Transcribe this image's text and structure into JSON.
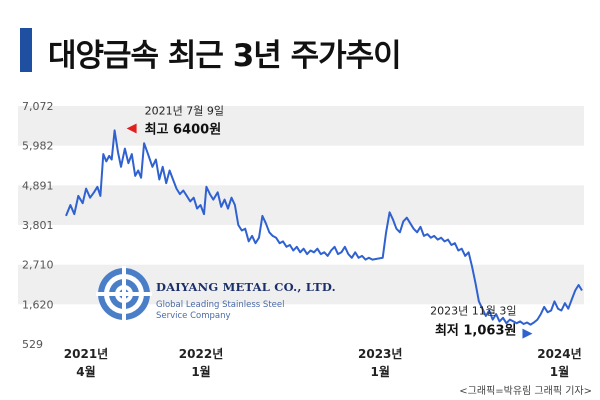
{
  "header": {
    "title": "대양금속 최근 3년 주가추이"
  },
  "credit": "<그래픽=박유림 그래픽 기자>",
  "logo": {
    "name": "DAIYANG METAL CO., LTD.",
    "tagline_1": "Global Leading Stainless Steel",
    "tagline_2": "Service Company"
  },
  "colors": {
    "line": "#2f62d0",
    "title_bar": "#1f4fa0",
    "band": "#efefef",
    "high_marker": "#e02020",
    "low_marker": "#2f62d0"
  },
  "chart_data": {
    "type": "line",
    "title": "대양금속 최근 3년 주가추이",
    "y_ticks": [
      "7,072",
      "5,982",
      "4,891",
      "3,801",
      "2,710",
      "1,620",
      "529"
    ],
    "ylim": [
      529,
      7072
    ],
    "x_ticks": [
      {
        "year": "2021년",
        "month": "4월",
        "date": "2021-04"
      },
      {
        "year": "2022년",
        "month": "1월",
        "date": "2022-01"
      },
      {
        "year": "2023년",
        "month": "1월",
        "date": "2023-01"
      },
      {
        "year": "2024년",
        "month": "1월",
        "date": "2024-01"
      }
    ],
    "series": [
      {
        "values": [
          [
            "2021-04-01",
            4050
          ],
          [
            "2021-04-10",
            4350
          ],
          [
            "2021-04-18",
            4100
          ],
          [
            "2021-04-26",
            4600
          ],
          [
            "2021-05-05",
            4400
          ],
          [
            "2021-05-12",
            4800
          ],
          [
            "2021-05-20",
            4550
          ],
          [
            "2021-05-28",
            4700
          ],
          [
            "2021-06-04",
            4850
          ],
          [
            "2021-06-10",
            4600
          ],
          [
            "2021-06-16",
            5750
          ],
          [
            "2021-06-22",
            5550
          ],
          [
            "2021-06-28",
            5700
          ],
          [
            "2021-07-03",
            5600
          ],
          [
            "2021-07-09",
            6400
          ],
          [
            "2021-07-16",
            5800
          ],
          [
            "2021-07-22",
            5400
          ],
          [
            "2021-07-30",
            5900
          ],
          [
            "2021-08-06",
            5500
          ],
          [
            "2021-08-13",
            5750
          ],
          [
            "2021-08-20",
            5150
          ],
          [
            "2021-08-26",
            5300
          ],
          [
            "2021-09-01",
            5100
          ],
          [
            "2021-09-07",
            6050
          ],
          [
            "2021-09-15",
            5750
          ],
          [
            "2021-09-24",
            5400
          ],
          [
            "2021-10-01",
            5600
          ],
          [
            "2021-10-08",
            5050
          ],
          [
            "2021-10-15",
            5400
          ],
          [
            "2021-10-22",
            4950
          ],
          [
            "2021-10-29",
            5300
          ],
          [
            "2021-11-05",
            5050
          ],
          [
            "2021-11-12",
            4800
          ],
          [
            "2021-11-19",
            4650
          ],
          [
            "2021-11-26",
            4750
          ],
          [
            "2021-12-03",
            4600
          ],
          [
            "2021-12-10",
            4450
          ],
          [
            "2021-12-17",
            4550
          ],
          [
            "2021-12-24",
            4250
          ],
          [
            "2021-12-31",
            4350
          ],
          [
            "2022-01-07",
            4100
          ],
          [
            "2022-01-12",
            4850
          ],
          [
            "2022-01-19",
            4650
          ],
          [
            "2022-01-26",
            4500
          ],
          [
            "2022-02-04",
            4700
          ],
          [
            "2022-02-11",
            4300
          ],
          [
            "2022-02-18",
            4500
          ],
          [
            "2022-02-25",
            4250
          ],
          [
            "2022-03-04",
            4550
          ],
          [
            "2022-03-11",
            4350
          ],
          [
            "2022-03-18",
            3800
          ],
          [
            "2022-03-25",
            3650
          ],
          [
            "2022-04-01",
            3700
          ],
          [
            "2022-04-08",
            3350
          ],
          [
            "2022-04-15",
            3500
          ],
          [
            "2022-04-22",
            3300
          ],
          [
            "2022-04-29",
            3450
          ],
          [
            "2022-05-06",
            4050
          ],
          [
            "2022-05-13",
            3850
          ],
          [
            "2022-05-20",
            3600
          ],
          [
            "2022-05-27",
            3500
          ],
          [
            "2022-06-03",
            3450
          ],
          [
            "2022-06-10",
            3300
          ],
          [
            "2022-06-17",
            3350
          ],
          [
            "2022-06-24",
            3200
          ],
          [
            "2022-07-01",
            3250
          ],
          [
            "2022-07-08",
            3100
          ],
          [
            "2022-07-15",
            3200
          ],
          [
            "2022-07-22",
            3050
          ],
          [
            "2022-07-29",
            3150
          ],
          [
            "2022-08-05",
            3000
          ],
          [
            "2022-08-12",
            3100
          ],
          [
            "2022-08-19",
            3050
          ],
          [
            "2022-08-26",
            3150
          ],
          [
            "2022-09-02",
            3000
          ],
          [
            "2022-09-09",
            3050
          ],
          [
            "2022-09-16",
            2950
          ],
          [
            "2022-09-23",
            3100
          ],
          [
            "2022-09-30",
            3200
          ],
          [
            "2022-10-07",
            3000
          ],
          [
            "2022-10-14",
            3050
          ],
          [
            "2022-10-21",
            3200
          ],
          [
            "2022-10-28",
            3000
          ],
          [
            "2022-11-04",
            2900
          ],
          [
            "2022-11-11",
            3050
          ],
          [
            "2022-11-18",
            2900
          ],
          [
            "2022-11-25",
            2950
          ],
          [
            "2022-12-02",
            2850
          ],
          [
            "2022-12-09",
            2900
          ],
          [
            "2022-12-16",
            2850
          ],
          [
            "2023-01-06",
            2900
          ],
          [
            "2023-01-13",
            3600
          ],
          [
            "2023-01-20",
            4150
          ],
          [
            "2023-01-27",
            3950
          ],
          [
            "2023-02-03",
            3700
          ],
          [
            "2023-02-10",
            3600
          ],
          [
            "2023-02-17",
            3900
          ],
          [
            "2023-02-24",
            4000
          ],
          [
            "2023-03-03",
            3850
          ],
          [
            "2023-03-10",
            3700
          ],
          [
            "2023-03-17",
            3600
          ],
          [
            "2023-03-24",
            3750
          ],
          [
            "2023-03-31",
            3500
          ],
          [
            "2023-04-07",
            3550
          ],
          [
            "2023-04-14",
            3450
          ],
          [
            "2023-04-21",
            3500
          ],
          [
            "2023-04-28",
            3400
          ],
          [
            "2023-05-05",
            3450
          ],
          [
            "2023-05-12",
            3350
          ],
          [
            "2023-05-19",
            3400
          ],
          [
            "2023-05-26",
            3250
          ],
          [
            "2023-06-02",
            3300
          ],
          [
            "2023-06-09",
            3100
          ],
          [
            "2023-06-16",
            3150
          ],
          [
            "2023-06-23",
            2950
          ],
          [
            "2023-06-30",
            3050
          ],
          [
            "2023-07-07",
            2650
          ],
          [
            "2023-07-14",
            2200
          ],
          [
            "2023-07-21",
            1700
          ],
          [
            "2023-07-28",
            1500
          ],
          [
            "2023-08-04",
            1300
          ],
          [
            "2023-08-11",
            1450
          ],
          [
            "2023-08-18",
            1200
          ],
          [
            "2023-08-25",
            1350
          ],
          [
            "2023-09-01",
            1150
          ],
          [
            "2023-09-08",
            1250
          ],
          [
            "2023-09-15",
            1100
          ],
          [
            "2023-09-22",
            1200
          ],
          [
            "2023-09-29",
            1150
          ],
          [
            "2023-10-06",
            1100
          ],
          [
            "2023-10-13",
            1150
          ],
          [
            "2023-10-20",
            1080
          ],
          [
            "2023-10-27",
            1120
          ],
          [
            "2023-11-03",
            1063
          ],
          [
            "2023-11-10",
            1120
          ],
          [
            "2023-11-17",
            1200
          ],
          [
            "2023-11-24",
            1350
          ],
          [
            "2023-12-01",
            1550
          ],
          [
            "2023-12-08",
            1400
          ],
          [
            "2023-12-15",
            1450
          ],
          [
            "2023-12-22",
            1700
          ],
          [
            "2023-12-29",
            1500
          ],
          [
            "2024-01-05",
            1450
          ],
          [
            "2024-01-12",
            1650
          ],
          [
            "2024-01-19",
            1500
          ],
          [
            "2024-01-26",
            1750
          ],
          [
            "2024-02-02",
            2000
          ],
          [
            "2024-02-09",
            2150
          ],
          [
            "2024-02-16",
            2000
          ]
        ]
      }
    ],
    "annotations": [
      {
        "date": "2021-07-09",
        "label_date": "2021년 7월 9일",
        "label_value": "최고 6400원",
        "value": 6400,
        "kind": "high"
      },
      {
        "date": "2023-11-03",
        "label_date": "2023년 11월 3일",
        "label_value": "최저 1,063원",
        "value": 1063,
        "kind": "low"
      }
    ],
    "grid": "horizontal bands"
  }
}
